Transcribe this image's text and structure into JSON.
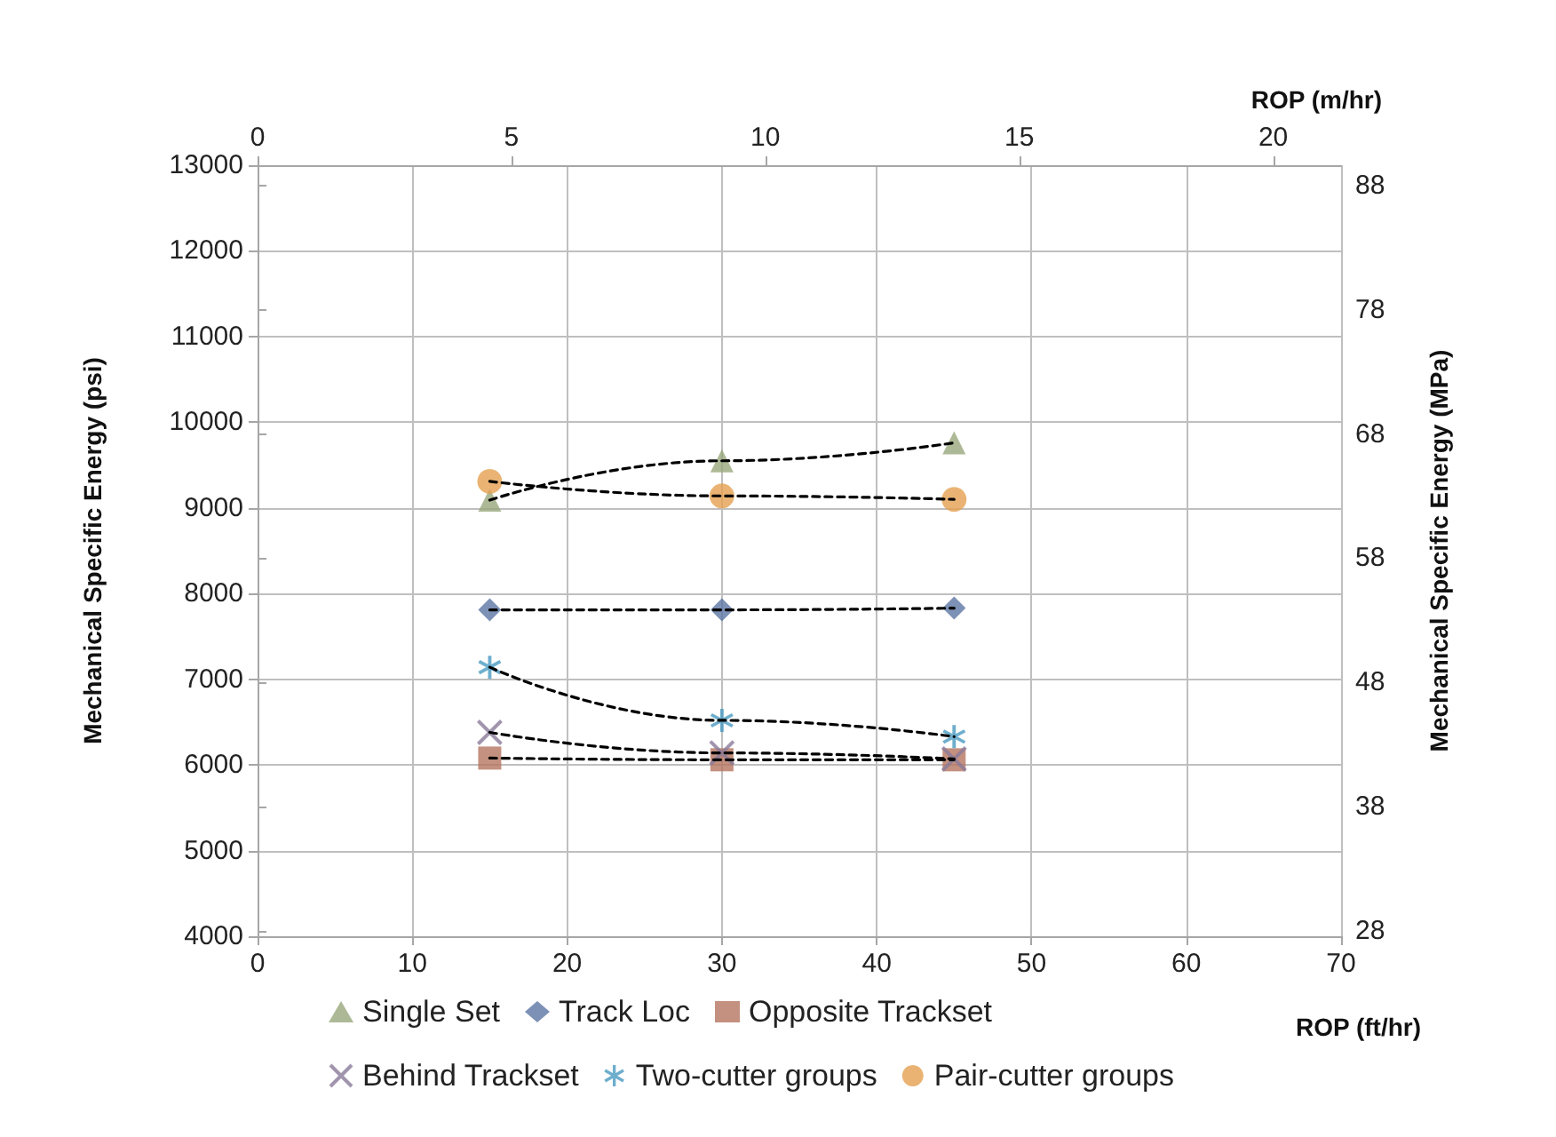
{
  "chart_data": {
    "type": "scatter",
    "xlabel": "ROP (ft/hr)",
    "ylabel": "Mechanical Specific Energy (psi)",
    "y2label": "Mechanical Specific Energy (MPa)",
    "x2label": "ROP (m/hr)",
    "xlim": [
      0,
      70
    ],
    "xticks": [
      0,
      10,
      20,
      30,
      40,
      50,
      60,
      70
    ],
    "ylim": [
      4000,
      13000
    ],
    "yticks": [
      4000,
      5000,
      6000,
      7000,
      8000,
      9000,
      10000,
      11000,
      12000,
      13000
    ],
    "x2lim": [
      0,
      21.336
    ],
    "x2ticks": [
      0,
      5,
      10,
      15,
      20
    ],
    "y2lim": [
      27.58,
      89.63
    ],
    "y2ticks": [
      28,
      38,
      48,
      58,
      68,
      78,
      88
    ],
    "grid": true,
    "legend": "bottom",
    "series": [
      {
        "name": "Single Set",
        "color": "#98a77c",
        "marker": "triangle",
        "x": [
          15,
          30,
          45
        ],
        "values": [
          9090,
          9550,
          9760
        ]
      },
      {
        "name": "Track Loc",
        "color": "#5b76a3",
        "marker": "diamond",
        "x": [
          15,
          30,
          45
        ],
        "values": [
          7810,
          7810,
          7830
        ]
      },
      {
        "name": "Opposite Trackset",
        "color": "#b5745f",
        "marker": "square",
        "x": [
          15,
          30,
          45
        ],
        "values": [
          6080,
          6060,
          6060
        ]
      },
      {
        "name": "Behind Trackset",
        "color": "#8a7a9a",
        "marker": "cross",
        "x": [
          15,
          30,
          45
        ],
        "values": [
          6380,
          6140,
          6070
        ]
      },
      {
        "name": "Two-cutter groups",
        "color": "#4a9ac0",
        "marker": "cross",
        "x": [
          15,
          30,
          45
        ],
        "values": [
          7140,
          6520,
          6330
        ]
      },
      {
        "name": "Pair-cutter groups",
        "color": "#e5a050",
        "marker": "circle",
        "x": [
          15,
          30,
          45
        ],
        "values": [
          9310,
          9140,
          9100
        ]
      },
      {
        "type": "line",
        "color": "#000000",
        "line_style": "dashed",
        "marker": "none",
        "x": [
          15,
          30,
          45
        ],
        "values": [
          9090,
          9550,
          9760
        ]
      },
      {
        "type": "line",
        "color": "#000000",
        "line_style": "dashed",
        "marker": "none",
        "x": [
          15,
          30,
          45
        ],
        "values": [
          7810,
          7810,
          7830
        ]
      },
      {
        "type": "line",
        "color": "#000000",
        "line_style": "dashed",
        "marker": "none",
        "x": [
          15,
          30,
          45
        ],
        "values": [
          6080,
          6060,
          6060
        ]
      },
      {
        "type": "line",
        "color": "#000000",
        "line_style": "dashed",
        "marker": "none",
        "x": [
          15,
          30,
          45
        ],
        "values": [
          6380,
          6140,
          6070
        ]
      },
      {
        "type": "line",
        "color": "#000000",
        "line_style": "dashed",
        "marker": "none",
        "x": [
          15,
          30,
          45
        ],
        "values": [
          7140,
          6520,
          6330
        ]
      },
      {
        "type": "line",
        "color": "#000000",
        "line_style": "dashed",
        "marker": "none",
        "x": [
          15,
          30,
          45
        ],
        "values": [
          9310,
          9140,
          9100
        ]
      }
    ]
  }
}
